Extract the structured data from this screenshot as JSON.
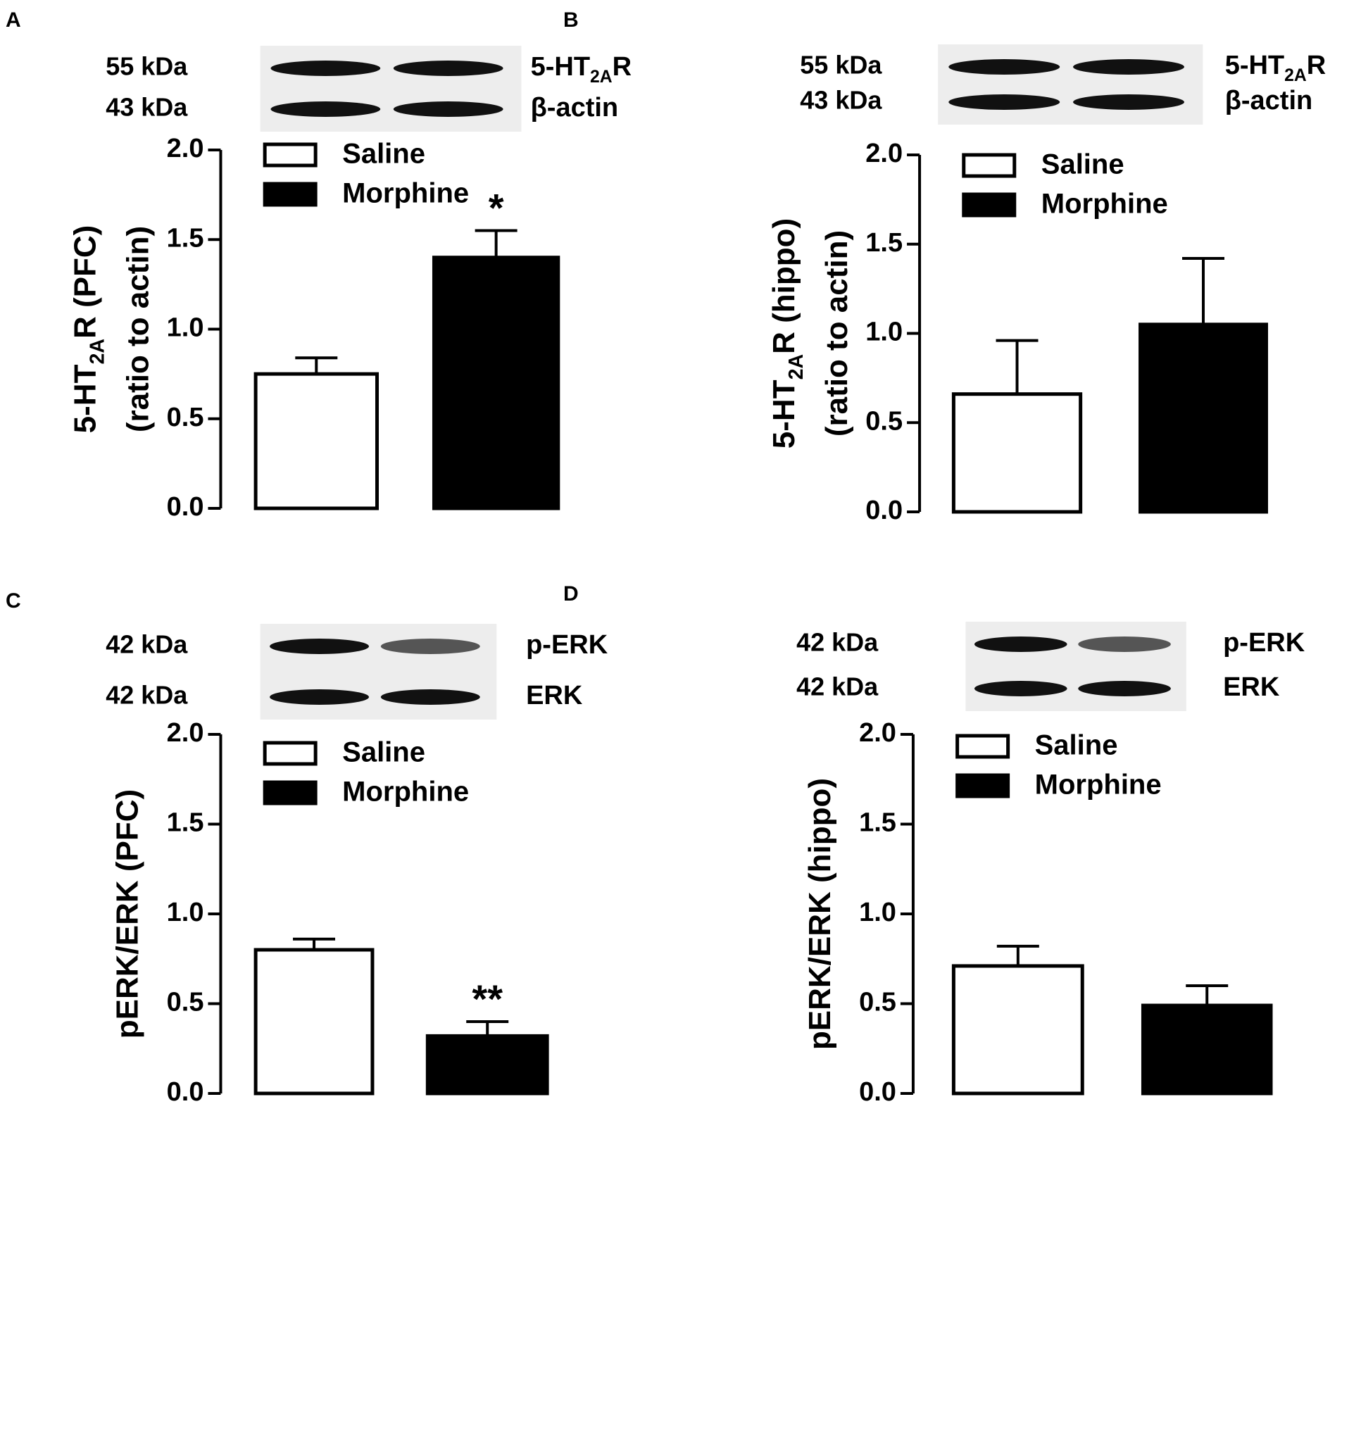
{
  "chart_data": [
    {
      "type": "bar",
      "panel": "A",
      "blot": {
        "markers": [
          "55 kDa",
          "43 kDa"
        ],
        "proteins": [
          [
            {
              "text": "5-HT"
            },
            {
              "text": "2A",
              "sub": true
            },
            {
              "text": "R"
            }
          ],
          [
            {
              "text": "β-actin"
            }
          ]
        ]
      },
      "y_label": [
        [
          {
            "text": "5-HT"
          },
          {
            "text": "2A",
            "sub": true
          },
          {
            "text": "R (PFC)"
          }
        ],
        [
          {
            "text": "(ratio to actin)"
          }
        ]
      ],
      "series": [
        {
          "name": "Saline",
          "color": "#ffffff",
          "values": [
            0.75
          ],
          "errors": [
            0.09
          ]
        },
        {
          "name": "Morphine",
          "color": "#000000",
          "values": [
            1.4
          ],
          "errors": [
            0.15
          ],
          "annotation": "*"
        }
      ],
      "ylim": [
        0,
        2
      ],
      "yticks": [
        {
          "value": 0,
          "label": "0.0"
        },
        0.5,
        {
          "value": 1,
          "label": "1.0"
        },
        1.5,
        {
          "value": 2,
          "label": "2.0"
        }
      ]
    },
    {
      "type": "bar",
      "panel": "B",
      "blot": {
        "markers": [
          "55 kDa",
          "43 kDa"
        ],
        "proteins": [
          [
            {
              "text": "5-HT"
            },
            {
              "text": "2A",
              "sub": true
            },
            {
              "text": "R"
            }
          ],
          [
            {
              "text": "β-actin"
            }
          ]
        ]
      },
      "y_label": [
        [
          {
            "text": "5-HT"
          },
          {
            "text": "2A",
            "sub": true
          },
          {
            "text": "R (hippo)"
          }
        ],
        [
          {
            "text": "(ratio to actin)"
          }
        ]
      ],
      "series": [
        {
          "name": "Saline",
          "color": "#ffffff",
          "values": [
            0.66
          ],
          "errors": [
            0.3
          ]
        },
        {
          "name": "Morphine",
          "color": "#000000",
          "values": [
            1.05
          ],
          "errors": [
            0.37
          ]
        }
      ],
      "ylim": [
        0,
        2
      ],
      "yticks": [
        {
          "value": 0,
          "label": "0.0"
        },
        0.5,
        {
          "value": 1,
          "label": "1.0"
        },
        1.5,
        {
          "value": 2,
          "label": "2.0"
        }
      ]
    },
    {
      "type": "bar",
      "panel": "C",
      "blot": {
        "markers": [
          "42 kDa",
          "42 kDa"
        ],
        "proteins": [
          [
            {
              "text": "p-ERK"
            }
          ],
          [
            {
              "text": "ERK"
            }
          ]
        ]
      },
      "y_label": [
        [
          {
            "text": "pERK/ERK (PFC)"
          }
        ]
      ],
      "series": [
        {
          "name": "Saline",
          "color": "#ffffff",
          "values": [
            0.8
          ],
          "errors": [
            0.06
          ]
        },
        {
          "name": "Morphine",
          "color": "#000000",
          "values": [
            0.32
          ],
          "errors": [
            0.08
          ],
          "annotation": "**"
        }
      ],
      "ylim": [
        0,
        2
      ],
      "yticks": [
        {
          "value": 0,
          "label": "0.0"
        },
        0.5,
        {
          "value": 1,
          "label": "1.0"
        },
        1.5,
        {
          "value": 2,
          "label": "2.0"
        }
      ]
    },
    {
      "type": "bar",
      "panel": "D",
      "blot": {
        "markers": [
          "42 kDa",
          "42 kDa"
        ],
        "proteins": [
          [
            {
              "text": "p-ERK"
            }
          ],
          [
            {
              "text": "ERK"
            }
          ]
        ]
      },
      "y_label": [
        [
          {
            "text": "pERK/ERK (hippo)"
          }
        ]
      ],
      "series": [
        {
          "name": "Saline",
          "color": "#ffffff",
          "values": [
            0.71
          ],
          "errors": [
            0.11
          ]
        },
        {
          "name": "Morphine",
          "color": "#000000",
          "values": [
            0.49
          ],
          "errors": [
            0.11
          ]
        }
      ],
      "ylim": [
        0,
        2
      ],
      "yticks": [
        {
          "value": 0,
          "label": "0.0"
        },
        0.5,
        {
          "value": 1,
          "label": "1.0"
        },
        1.5,
        {
          "value": 2,
          "label": "2.0"
        }
      ]
    }
  ]
}
